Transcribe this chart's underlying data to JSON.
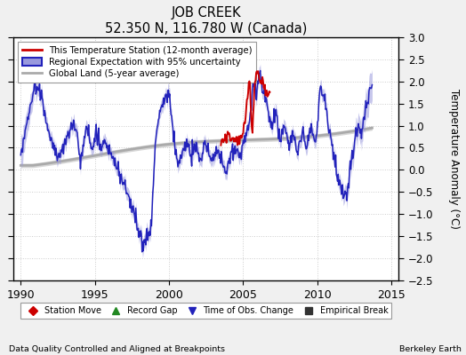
{
  "title": "JOB CREEK",
  "subtitle": "52.350 N, 116.780 W (Canada)",
  "ylabel": "Temperature Anomaly (°C)",
  "xlabel_left": "Data Quality Controlled and Aligned at Breakpoints",
  "xlabel_right": "Berkeley Earth",
  "xlim": [
    1989.5,
    2015.5
  ],
  "ylim": [
    -2.5,
    3.0
  ],
  "yticks": [
    -2.5,
    -2,
    -1.5,
    -1,
    -0.5,
    0,
    0.5,
    1,
    1.5,
    2,
    2.5,
    3
  ],
  "xticks": [
    1990,
    1995,
    2000,
    2005,
    2010,
    2015
  ],
  "bg_color": "#f0f0f0",
  "plot_bg_color": "#ffffff",
  "regional_color": "#2222bb",
  "regional_fill_color": "#9999dd",
  "station_color": "#cc0000",
  "global_color": "#aaaaaa",
  "global_fill_color": "#cccccc",
  "grid_color": "#cccccc",
  "legend_labels": [
    "This Temperature Station (12-month average)",
    "Regional Expectation with 95% uncertainty",
    "Global Land (5-year average)"
  ],
  "bottom_legend": [
    {
      "marker": "D",
      "color": "#cc0000",
      "label": "Station Move"
    },
    {
      "marker": "^",
      "color": "#228822",
      "label": "Record Gap"
    },
    {
      "marker": "v",
      "color": "#2222bb",
      "label": "Time of Obs. Change"
    },
    {
      "marker": "s",
      "color": "#333333",
      "label": "Empirical Break"
    }
  ]
}
